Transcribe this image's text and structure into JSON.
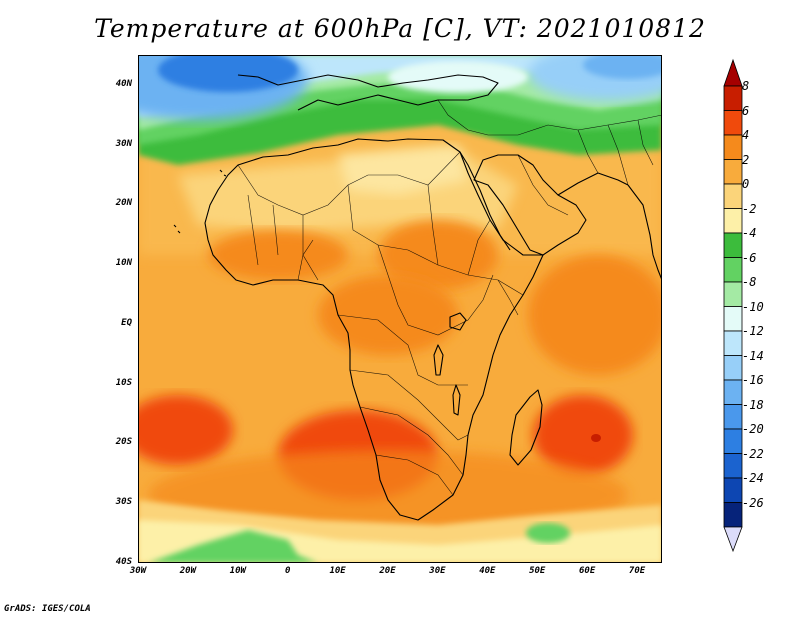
{
  "title": "Temperature at 600hPa [C], VT: 2021010812",
  "credit": "GrADS: IGES/COLA",
  "map": {
    "lon_range": [
      -30,
      75
    ],
    "lat_range": [
      -40,
      45
    ],
    "lat_ticks": [
      {
        "value": 40,
        "label": "40N"
      },
      {
        "value": 30,
        "label": "30N"
      },
      {
        "value": 20,
        "label": "20N"
      },
      {
        "value": 10,
        "label": "10N"
      },
      {
        "value": 0,
        "label": "EQ"
      },
      {
        "value": -10,
        "label": "10S"
      },
      {
        "value": -20,
        "label": "20S"
      },
      {
        "value": -30,
        "label": "30S"
      },
      {
        "value": -40,
        "label": "40S"
      }
    ],
    "lon_ticks": [
      {
        "value": -30,
        "label": "30W"
      },
      {
        "value": -20,
        "label": "20W"
      },
      {
        "value": -10,
        "label": "10W"
      },
      {
        "value": 0,
        "label": "0"
      },
      {
        "value": 10,
        "label": "10E"
      },
      {
        "value": 20,
        "label": "20E"
      },
      {
        "value": 30,
        "label": "30E"
      },
      {
        "value": 40,
        "label": "40E"
      },
      {
        "value": 50,
        "label": "50E"
      },
      {
        "value": 60,
        "label": "60E"
      },
      {
        "value": 70,
        "label": "70E"
      }
    ]
  },
  "colorbar": {
    "levels": [
      {
        "label": "8",
        "color": "#c81e00"
      },
      {
        "label": "6",
        "color": "#f04a0c"
      },
      {
        "label": "4",
        "color": "#f58a1c"
      },
      {
        "label": "2",
        "color": "#f8ab3c"
      },
      {
        "label": "0",
        "color": "#fbd47a"
      },
      {
        "label": "-2",
        "color": "#fdf0a8"
      },
      {
        "label": "-4",
        "color": "#3cbc3c"
      },
      {
        "label": "-6",
        "color": "#62d262"
      },
      {
        "label": "-8",
        "color": "#a4eaa4"
      },
      {
        "label": "-10",
        "color": "#e4fbf8"
      },
      {
        "label": "-12",
        "color": "#bde6fb"
      },
      {
        "label": "-14",
        "color": "#97cff8"
      },
      {
        "label": "-16",
        "color": "#6cb2f2"
      },
      {
        "label": "-18",
        "color": "#4a98ec"
      },
      {
        "label": "-20",
        "color": "#2d7fe2"
      },
      {
        "label": "-22",
        "color": "#1b63cf"
      },
      {
        "label": "-24",
        "color": "#0d46b2"
      },
      {
        "label": "-26",
        "color": "#06237a"
      }
    ],
    "top_arrow_color": "#a50000",
    "bottom_arrow_color": "#dcdcfa"
  }
}
